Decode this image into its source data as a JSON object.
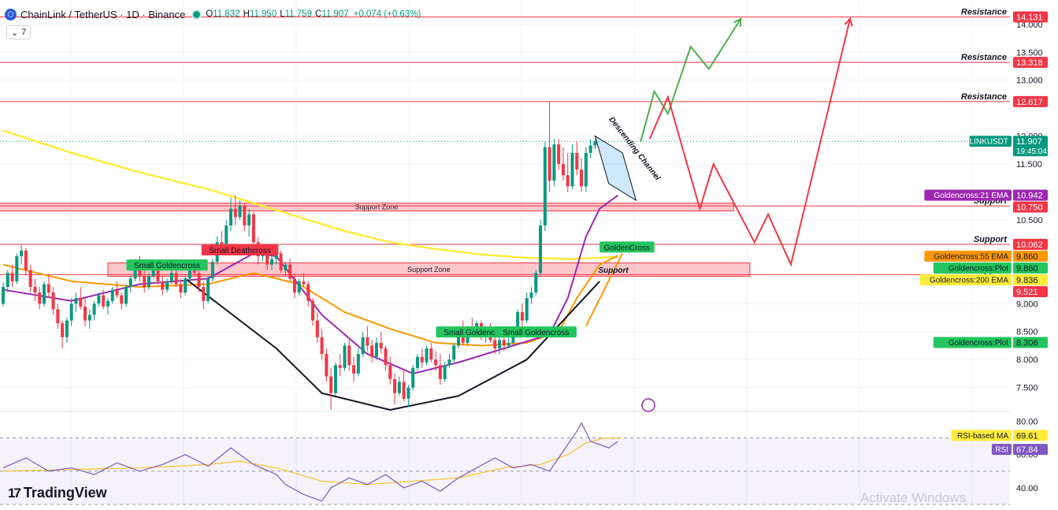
{
  "header": {
    "title": "ChainLink / TetherUS · 1D · Binance",
    "open_label": "O",
    "open": "11.832",
    "high_label": "H",
    "high": "11.950",
    "low_label": "L",
    "low": "11.759",
    "close_label": "C",
    "close": "11.907",
    "change": "+0.074 (+0.63%)",
    "indicator_count": "7"
  },
  "brand": {
    "name": "TradingView",
    "logo_text": "17"
  },
  "watermark": "Activate Windows",
  "colors": {
    "up": "#089981",
    "down": "#f23645",
    "ema21": "#9c27b0",
    "ema55": "#ff9800",
    "ema200": "#ffeb3b",
    "rsi": "#7e57c2",
    "rsi_ma": "#fbc02d",
    "resistance": "#f23645",
    "arrow_up": "#4caf50",
    "arrow_down": "#f23645"
  },
  "chart_data": {
    "type": "candlestick",
    "symbol": "LINKUSDT",
    "price_axis": {
      "ticks": [
        7.5,
        8.0,
        8.5,
        9.0,
        10.5,
        11.5,
        12.0,
        13.0,
        13.5,
        14.0
      ],
      "tick_labels": [
        "7.500",
        "8.000",
        "8.500",
        "9.000",
        "10.500",
        "11.500",
        "12.000",
        "13.000",
        "13.500",
        "14.000"
      ],
      "range": [
        7.1,
        14.35
      ]
    },
    "rsi_axis": {
      "ticks": [
        40,
        60,
        80
      ],
      "tick_labels": [
        "40.00",
        "60.00",
        "80.00"
      ],
      "range": [
        30,
        84
      ]
    },
    "candles": [
      [
        9.0,
        9.38,
        8.95,
        9.3
      ],
      [
        9.3,
        9.6,
        9.2,
        9.55
      ],
      [
        9.55,
        9.7,
        9.3,
        9.4
      ],
      [
        9.4,
        9.9,
        9.35,
        9.85
      ],
      [
        9.85,
        10.05,
        9.7,
        9.95
      ],
      [
        9.95,
        10.0,
        9.5,
        9.6
      ],
      [
        9.6,
        9.7,
        9.2,
        9.3
      ],
      [
        9.3,
        9.45,
        9.05,
        9.2
      ],
      [
        9.2,
        9.3,
        8.9,
        9.0
      ],
      [
        9.0,
        9.4,
        8.95,
        9.35
      ],
      [
        9.35,
        9.5,
        9.1,
        9.2
      ],
      [
        9.2,
        9.3,
        8.8,
        8.9
      ],
      [
        8.9,
        9.0,
        8.55,
        8.65
      ],
      [
        8.65,
        8.7,
        8.2,
        8.4
      ],
      [
        8.4,
        8.75,
        8.3,
        8.7
      ],
      [
        8.7,
        9.1,
        8.6,
        9.0
      ],
      [
        9.0,
        9.2,
        8.85,
        9.1
      ],
      [
        9.1,
        9.3,
        8.9,
        8.95
      ],
      [
        8.95,
        9.1,
        8.6,
        8.7
      ],
      [
        8.7,
        8.9,
        8.55,
        8.8
      ],
      [
        8.8,
        9.05,
        8.7,
        9.0
      ],
      [
        9.0,
        9.2,
        8.95,
        9.15
      ],
      [
        9.15,
        9.25,
        8.9,
        8.95
      ],
      [
        8.95,
        9.1,
        8.8,
        9.05
      ],
      [
        9.05,
        9.3,
        9.0,
        9.25
      ],
      [
        9.25,
        9.4,
        9.1,
        9.15
      ],
      [
        9.15,
        9.2,
        8.9,
        9.0
      ],
      [
        9.0,
        9.35,
        8.95,
        9.3
      ],
      [
        9.3,
        9.5,
        9.2,
        9.45
      ],
      [
        9.45,
        9.8,
        9.4,
        9.75
      ],
      [
        9.75,
        9.85,
        9.4,
        9.5
      ],
      [
        9.5,
        9.6,
        9.2,
        9.3
      ],
      [
        9.3,
        9.55,
        9.25,
        9.5
      ],
      [
        9.5,
        9.7,
        9.45,
        9.6
      ],
      [
        9.6,
        9.75,
        9.35,
        9.4
      ],
      [
        9.4,
        9.5,
        9.15,
        9.25
      ],
      [
        9.25,
        9.45,
        9.2,
        9.4
      ],
      [
        9.4,
        9.65,
        9.35,
        9.55
      ],
      [
        9.55,
        9.6,
        9.3,
        9.35
      ],
      [
        9.35,
        9.45,
        9.1,
        9.2
      ],
      [
        9.2,
        9.5,
        9.15,
        9.45
      ],
      [
        9.45,
        9.7,
        9.4,
        9.65
      ],
      [
        9.65,
        9.8,
        9.5,
        9.55
      ],
      [
        9.55,
        9.6,
        9.2,
        9.3
      ],
      [
        9.3,
        9.4,
        8.9,
        9.05
      ],
      [
        9.05,
        9.5,
        9.0,
        9.45
      ],
      [
        9.45,
        9.8,
        9.4,
        9.75
      ],
      [
        9.75,
        10.2,
        9.7,
        10.1
      ],
      [
        10.1,
        10.3,
        9.9,
        10.0
      ],
      [
        10.0,
        10.5,
        9.95,
        10.4
      ],
      [
        10.4,
        10.9,
        10.3,
        10.7
      ],
      [
        10.7,
        10.95,
        10.4,
        10.55
      ],
      [
        10.55,
        10.85,
        10.5,
        10.75
      ],
      [
        10.75,
        10.8,
        10.3,
        10.4
      ],
      [
        10.4,
        10.7,
        10.2,
        10.6
      ],
      [
        10.6,
        10.65,
        10.0,
        10.1
      ],
      [
        10.1,
        10.2,
        9.7,
        9.85
      ],
      [
        9.85,
        10.05,
        9.75,
        9.95
      ],
      [
        9.95,
        10.0,
        9.6,
        9.7
      ],
      [
        9.7,
        9.9,
        9.6,
        9.8
      ],
      [
        9.8,
        10.0,
        9.7,
        9.9
      ],
      [
        9.9,
        9.95,
        9.55,
        9.6
      ],
      [
        9.6,
        9.75,
        9.5,
        9.7
      ],
      [
        9.7,
        9.8,
        9.4,
        9.45
      ],
      [
        9.45,
        9.55,
        9.1,
        9.2
      ],
      [
        9.2,
        9.45,
        9.15,
        9.4
      ],
      [
        9.4,
        9.55,
        9.3,
        9.35
      ],
      [
        9.35,
        9.4,
        8.95,
        9.05
      ],
      [
        9.05,
        9.1,
        8.6,
        8.7
      ],
      [
        8.7,
        8.85,
        8.3,
        8.4
      ],
      [
        8.4,
        8.55,
        8.0,
        8.1
      ],
      [
        8.1,
        8.2,
        7.6,
        7.7
      ],
      [
        7.7,
        7.85,
        7.1,
        7.4
      ],
      [
        7.4,
        7.95,
        7.35,
        7.9
      ],
      [
        7.9,
        8.1,
        7.7,
        7.85
      ],
      [
        7.85,
        8.3,
        7.8,
        8.25
      ],
      [
        8.25,
        8.4,
        7.8,
        7.9
      ],
      [
        7.9,
        8.05,
        7.6,
        7.75
      ],
      [
        7.75,
        8.2,
        7.7,
        8.1
      ],
      [
        8.1,
        8.5,
        8.05,
        8.4
      ],
      [
        8.4,
        8.6,
        8.15,
        8.25
      ],
      [
        8.25,
        8.35,
        7.95,
        8.05
      ],
      [
        8.05,
        8.4,
        8.0,
        8.3
      ],
      [
        8.3,
        8.5,
        8.1,
        8.2
      ],
      [
        8.2,
        8.25,
        7.8,
        7.9
      ],
      [
        7.9,
        8.05,
        7.55,
        7.65
      ],
      [
        7.65,
        7.75,
        7.2,
        7.4
      ],
      [
        7.4,
        7.7,
        7.35,
        7.6
      ],
      [
        7.6,
        7.8,
        7.25,
        7.3
      ],
      [
        7.3,
        7.55,
        7.15,
        7.5
      ],
      [
        7.5,
        7.9,
        7.45,
        7.85
      ],
      [
        7.85,
        8.1,
        7.8,
        8.05
      ],
      [
        8.05,
        8.2,
        7.85,
        7.95
      ],
      [
        7.95,
        8.25,
        7.9,
        8.2
      ],
      [
        8.2,
        8.3,
        7.95,
        8.0
      ],
      [
        8.0,
        8.15,
        7.8,
        7.9
      ],
      [
        7.9,
        8.1,
        7.55,
        7.65
      ],
      [
        7.65,
        7.95,
        7.6,
        7.9
      ],
      [
        7.9,
        8.1,
        7.85,
        8.0
      ],
      [
        8.0,
        8.3,
        7.95,
        8.25
      ],
      [
        8.25,
        8.55,
        8.2,
        8.5
      ],
      [
        8.5,
        8.7,
        8.25,
        8.3
      ],
      [
        8.3,
        8.6,
        8.25,
        8.55
      ],
      [
        8.55,
        8.75,
        8.4,
        8.45
      ],
      [
        8.45,
        8.7,
        8.4,
        8.65
      ],
      [
        8.65,
        8.7,
        8.35,
        8.4
      ],
      [
        8.4,
        8.6,
        8.3,
        8.55
      ],
      [
        8.55,
        8.65,
        8.3,
        8.35
      ],
      [
        8.35,
        8.45,
        8.1,
        8.2
      ],
      [
        8.2,
        8.4,
        8.1,
        8.35
      ],
      [
        8.35,
        8.5,
        8.15,
        8.25
      ],
      [
        8.25,
        8.4,
        8.2,
        8.3
      ],
      [
        8.3,
        8.55,
        8.25,
        8.5
      ],
      [
        8.5,
        8.9,
        8.45,
        8.85
      ],
      [
        8.85,
        9.0,
        8.6,
        8.7
      ],
      [
        8.7,
        9.2,
        8.65,
        9.1
      ],
      [
        9.1,
        9.3,
        9.0,
        9.2
      ],
      [
        9.2,
        9.6,
        9.15,
        9.55
      ],
      [
        9.55,
        10.5,
        9.5,
        10.4
      ],
      [
        10.4,
        11.9,
        10.3,
        11.8
      ],
      [
        11.8,
        12.617,
        11.0,
        11.2
      ],
      [
        11.2,
        11.95,
        11.1,
        11.85
      ],
      [
        11.85,
        11.95,
        11.4,
        11.5
      ],
      [
        11.5,
        11.8,
        11.2,
        11.3
      ],
      [
        11.3,
        11.7,
        11.0,
        11.1
      ],
      [
        11.1,
        11.85,
        11.05,
        11.7
      ],
      [
        11.7,
        11.9,
        11.3,
        11.4
      ],
      [
        11.4,
        11.6,
        11.0,
        11.1
      ],
      [
        11.1,
        11.8,
        11.0,
        11.7
      ],
      [
        11.7,
        11.95,
        11.6,
        11.83
      ],
      [
        11.832,
        11.95,
        11.759,
        11.907
      ]
    ],
    "ema21": [
      [
        0,
        9.25
      ],
      [
        15,
        9.05
      ],
      [
        30,
        9.35
      ],
      [
        45,
        9.45
      ],
      [
        55,
        9.9
      ],
      [
        60,
        9.85
      ],
      [
        70,
        8.8
      ],
      [
        80,
        8.1
      ],
      [
        90,
        7.75
      ],
      [
        100,
        7.95
      ],
      [
        110,
        8.2
      ],
      [
        120,
        8.45
      ],
      [
        124,
        9.1
      ],
      [
        128,
        10.2
      ],
      [
        131,
        10.7
      ],
      [
        135,
        10.94
      ]
    ],
    "ema55": [
      [
        0,
        9.7
      ],
      [
        15,
        9.4
      ],
      [
        30,
        9.3
      ],
      [
        45,
        9.35
      ],
      [
        55,
        9.55
      ],
      [
        65,
        9.35
      ],
      [
        75,
        8.85
      ],
      [
        85,
        8.55
      ],
      [
        95,
        8.3
      ],
      [
        105,
        8.25
      ],
      [
        115,
        8.3
      ],
      [
        122,
        8.5
      ],
      [
        126,
        9.1
      ],
      [
        131,
        9.7
      ],
      [
        135,
        9.86
      ]
    ],
    "ema200": [
      [
        0,
        12.1
      ],
      [
        15,
        11.7
      ],
      [
        30,
        11.35
      ],
      [
        45,
        11.05
      ],
      [
        55,
        10.8
      ],
      [
        65,
        10.55
      ],
      [
        75,
        10.3
      ],
      [
        85,
        10.1
      ],
      [
        95,
        9.98
      ],
      [
        105,
        9.88
      ],
      [
        115,
        9.82
      ],
      [
        125,
        9.8
      ],
      [
        135,
        9.84
      ]
    ],
    "rsi": [
      [
        0,
        52
      ],
      [
        5,
        58
      ],
      [
        10,
        50
      ],
      [
        15,
        52
      ],
      [
        20,
        48
      ],
      [
        25,
        55
      ],
      [
        30,
        50
      ],
      [
        35,
        54
      ],
      [
        40,
        60
      ],
      [
        45,
        53
      ],
      [
        50,
        64
      ],
      [
        52,
        60
      ],
      [
        55,
        54
      ],
      [
        60,
        48
      ],
      [
        62,
        42
      ],
      [
        66,
        36
      ],
      [
        70,
        32
      ],
      [
        72,
        40
      ],
      [
        76,
        46
      ],
      [
        80,
        42
      ],
      [
        84,
        48
      ],
      [
        88,
        40
      ],
      [
        92,
        44
      ],
      [
        96,
        38
      ],
      [
        100,
        46
      ],
      [
        104,
        52
      ],
      [
        108,
        58
      ],
      [
        112,
        52
      ],
      [
        116,
        54
      ],
      [
        120,
        50
      ],
      [
        122,
        58
      ],
      [
        124,
        66
      ],
      [
        126,
        74
      ],
      [
        127,
        79
      ],
      [
        129,
        68
      ],
      [
        131,
        66
      ],
      [
        133,
        64
      ],
      [
        135,
        67.84
      ]
    ],
    "rsi_ma": [
      [
        0,
        50
      ],
      [
        15,
        51
      ],
      [
        30,
        52
      ],
      [
        45,
        54
      ],
      [
        52,
        56
      ],
      [
        60,
        52
      ],
      [
        70,
        44
      ],
      [
        80,
        42
      ],
      [
        90,
        44
      ],
      [
        100,
        46
      ],
      [
        110,
        52
      ],
      [
        118,
        54
      ],
      [
        124,
        60
      ],
      [
        128,
        67
      ],
      [
        132,
        70
      ],
      [
        135,
        69.61
      ]
    ],
    "levels": [
      {
        "name": "Resistance",
        "value": 14.131,
        "color": "#f23645"
      },
      {
        "name": "Resistance",
        "value": 13.318,
        "color": "#f23645"
      },
      {
        "name": "Resistance",
        "value": 12.617,
        "color": "#f23645"
      },
      {
        "name": "Support",
        "value": 10.75,
        "color": "#f23645"
      },
      {
        "name": "Support",
        "value": 10.062,
        "color": "#f23645"
      },
      {
        "name": "Support",
        "value": 9.521,
        "color": "#f23645"
      }
    ],
    "zones": [
      {
        "label": "Support Zone",
        "top": 10.8,
        "bottom": 10.66,
        "from": -8,
        "to": 164
      },
      {
        "label": "Support Zone",
        "top": 9.73,
        "bottom": 9.49,
        "from": 23,
        "to": 164
      }
    ],
    "annotations": [
      {
        "label": "Small Goldencross",
        "x": 36,
        "price": 9.68,
        "color": "#22c55e"
      },
      {
        "label": "Small Deathcross",
        "x": 52,
        "price": 9.95,
        "color": "#f23645"
      },
      {
        "label": "Small Goldencross",
        "x": 104,
        "price": 8.48,
        "color": "#22c55e"
      },
      {
        "label": "Small Goldencross",
        "x": 117,
        "price": 8.48,
        "color": "#22c55e"
      },
      {
        "label": "GoldenCross",
        "x": 137,
        "price": 10.0,
        "color": "#22c55e"
      },
      {
        "label": "Support",
        "x": 134,
        "price": 9.6,
        "color": "#131722"
      }
    ],
    "channel_label": "Descending Channel",
    "pattern": {
      "type": "cup",
      "points": [
        [
          40,
          9.45
        ],
        [
          60,
          8.2
        ],
        [
          70,
          7.4
        ],
        [
          85,
          7.1
        ],
        [
          100,
          7.35
        ],
        [
          115,
          8.0
        ],
        [
          131,
          9.4
        ]
      ]
    },
    "projection_green": [
      [
        140,
        11.9
      ],
      [
        143,
        12.8
      ],
      [
        146,
        12.4
      ],
      [
        151,
        13.6
      ],
      [
        155,
        13.2
      ],
      [
        162,
        14.1
      ]
    ],
    "projection_red": [
      [
        142,
        11.95
      ],
      [
        146,
        12.7
      ],
      [
        153,
        10.7
      ],
      [
        156,
        11.5
      ],
      [
        165,
        10.1
      ],
      [
        168,
        10.6
      ],
      [
        173,
        9.7
      ],
      [
        186,
        14.1
      ]
    ],
    "right_labels": [
      {
        "text": "14.131",
        "value": 14.131,
        "bg": "#f23645",
        "fg": "#ffffff"
      },
      {
        "text": "13.318",
        "value": 13.318,
        "bg": "#f23645",
        "fg": "#ffffff"
      },
      {
        "text": "12.617",
        "value": 12.617,
        "bg": "#f23645",
        "fg": "#ffffff"
      },
      {
        "text": "11.907",
        "sub": "19:45:04",
        "value": 11.907,
        "bg": "#089981",
        "fg": "#ffffff",
        "tag": "LINKUSDT"
      },
      {
        "text": "10.942",
        "value": 10.942,
        "bg": "#9c27b0",
        "fg": "#ffffff",
        "tag": "Goldencross:21 EMA"
      },
      {
        "text": "10.750",
        "value": 10.75,
        "bg": "#f23645",
        "fg": "#ffffff"
      },
      {
        "text": "10.062",
        "value": 10.062,
        "bg": "#f23645",
        "fg": "#ffffff"
      },
      {
        "text": "9.860",
        "value": 9.86,
        "bg": "#ff9800",
        "fg": "#131722",
        "tag": "Goldencross:55 EMA"
      },
      {
        "text": "9.860",
        "value": 9.86,
        "bg": "#22c55e",
        "fg": "#131722",
        "tag": "Goldencross:Plot"
      },
      {
        "text": "9.836",
        "value": 9.836,
        "bg": "#ffeb3b",
        "fg": "#131722",
        "tag": "Goldencross:200 EMA"
      },
      {
        "text": "9.521",
        "value": 9.521,
        "bg": "#f23645",
        "fg": "#ffffff"
      },
      {
        "text": "8.306",
        "value": 8.306,
        "bg": "#22c55e",
        "fg": "#131722",
        "tag": "Goldencross:Plot"
      }
    ],
    "rsi_labels": [
      {
        "text": "69.61",
        "value": 69.61,
        "bg": "#ffeb3b",
        "fg": "#131722",
        "tag": "RSI-based MA"
      },
      {
        "text": "67.84",
        "value": 67.84,
        "bg": "#7e57c2",
        "fg": "#ffffff",
        "tag": "RSI"
      }
    ]
  }
}
